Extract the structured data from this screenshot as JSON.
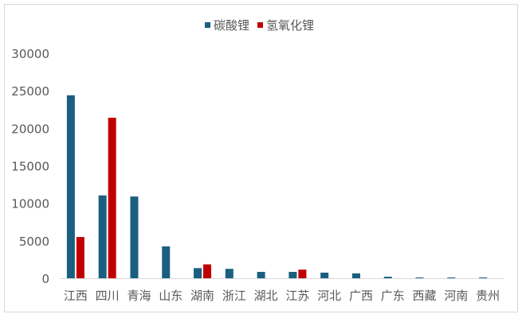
{
  "chart_data": {
    "type": "bar",
    "title": "",
    "xlabel": "",
    "ylabel": "",
    "ylim": [
      0,
      30000
    ],
    "yticks": [
      0,
      5000,
      10000,
      15000,
      20000,
      25000,
      30000
    ],
    "grid": false,
    "legend_position": "top",
    "categories": [
      "江西",
      "四川",
      "青海",
      "山东",
      "湖南",
      "浙江",
      "湖北",
      "江苏",
      "河北",
      "广西",
      "广东",
      "西藏",
      "河南",
      "贵州"
    ],
    "series": [
      {
        "name": "碳酸锂",
        "color": "#1a5f7f",
        "values": [
          24400,
          11050,
          10900,
          4250,
          1350,
          1250,
          850,
          850,
          750,
          650,
          200,
          100,
          100,
          100
        ]
      },
      {
        "name": "氢氧化锂",
        "color": "#c00000",
        "values": [
          5500,
          21400,
          0,
          0,
          1850,
          0,
          0,
          1150,
          0,
          0,
          0,
          0,
          0,
          0
        ]
      }
    ]
  }
}
